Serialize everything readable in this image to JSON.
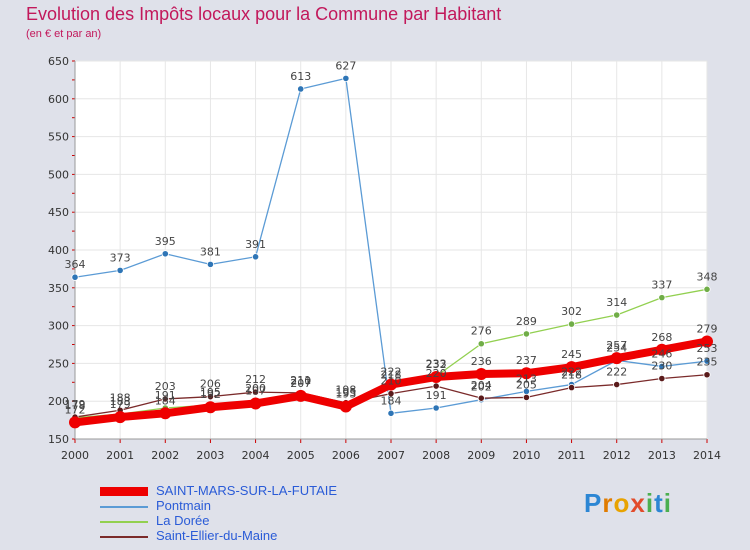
{
  "chart_data": {
    "type": "line",
    "title": "Evolution des Impôts locaux pour la Commune par Habitant",
    "subtitle": "(en € et par an)",
    "xlabel": "",
    "ylabel": "",
    "ylim": [
      150,
      650
    ],
    "yticks": [
      150,
      200,
      250,
      300,
      350,
      400,
      450,
      500,
      550,
      600,
      650
    ],
    "x": [
      2000,
      2001,
      2002,
      2003,
      2004,
      2005,
      2006,
      2007,
      2008,
      2009,
      2010,
      2011,
      2012,
      2013,
      2014
    ],
    "grid": true,
    "series": [
      {
        "name": "Pontmain",
        "color": "#5b9bd5",
        "marker": "#2e75b6",
        "values": [
          364,
          373,
          395,
          381,
          391,
          613,
          627,
          184,
          191,
          202,
          213,
          222,
          254,
          246,
          253
        ],
        "labels": [
          "364",
          "373",
          "395",
          "381",
          "391",
          "613",
          "627",
          "184",
          "191",
          "202",
          "213",
          "222",
          "254",
          "246",
          "253"
        ]
      },
      {
        "name": "La Dorée",
        "color": "#92d050",
        "marker": "#70ad47",
        "values": [
          178,
          183,
          191,
          195,
          200,
          210,
          195,
          218,
          233,
          276,
          289,
          302,
          314,
          337,
          348
        ],
        "labels": [
          "178",
          "183",
          "191",
          "195",
          "200",
          "210",
          "195",
          "218",
          "233",
          "276",
          "289",
          "302",
          "314",
          "337",
          "348"
        ]
      },
      {
        "name": "Saint-Ellier-du-Maine",
        "color": "#7b2b2b",
        "marker": "#5a1a1a",
        "values": [
          179,
          188,
          203,
          206,
          212,
          211,
          198,
          210,
          220,
          204,
          205,
          218,
          222,
          230,
          235
        ],
        "labels": [
          "179",
          "188",
          "203",
          "206",
          "212",
          "211",
          "198",
          "210",
          "220",
          "204",
          "205",
          "218",
          "222",
          "230",
          "235"
        ]
      },
      {
        "name": "SAINT-MARS-SUR-LA-FUTAIE",
        "color": "#ee0000",
        "marker": "#ee0000",
        "values": [
          172,
          179,
          184,
          192,
          197,
          207,
          193,
          222,
          232,
          236,
          237,
          245,
          257,
          268,
          279
        ],
        "labels": [
          "172",
          "179",
          "184",
          "192",
          "197",
          "207",
          "193",
          "222",
          "232",
          "236",
          "237",
          "245",
          "257",
          "268",
          "279"
        ]
      }
    ]
  },
  "legend": {
    "items": [
      {
        "name": "SAINT-MARS-SUR-LA-FUTAIE",
        "color": "#ee0000"
      },
      {
        "name": "Pontmain",
        "color": "#5b9bd5"
      },
      {
        "name": "La Dorée",
        "color": "#92d050"
      },
      {
        "name": "Saint-Ellier-du-Maine",
        "color": "#7b2b2b"
      }
    ]
  },
  "logo": {
    "text": "Proxiti"
  }
}
